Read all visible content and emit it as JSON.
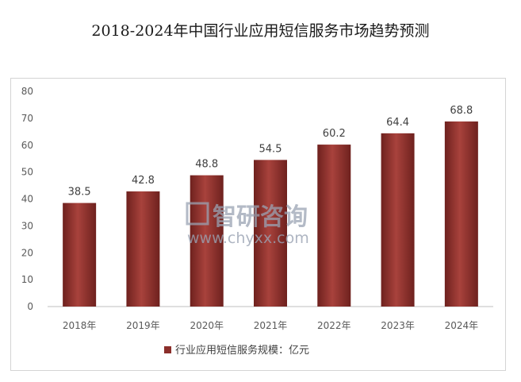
{
  "chart_data": {
    "type": "bar",
    "title": "2018-2024年中国行业应用短信服务市场趋势预测",
    "categories": [
      "2018年",
      "2019年",
      "2020年",
      "2021年",
      "2022年",
      "2023年",
      "2024年"
    ],
    "series": [
      {
        "name": "行业应用短信服务规模：亿元",
        "values": [
          38.5,
          42.8,
          48.8,
          54.5,
          60.2,
          64.4,
          68.8
        ]
      }
    ],
    "data_labels": [
      "38.5",
      "42.8",
      "48.8",
      "54.5",
      "60.2",
      "64.4",
      "68.8"
    ],
    "ylim": [
      0,
      80
    ],
    "yticks": [
      0,
      10,
      20,
      30,
      40,
      50,
      60,
      70,
      80
    ],
    "xlabel": "",
    "ylabel": "",
    "grid": false,
    "legend": "bottom",
    "bar_color": "#8b2e2a"
  },
  "watermark": {
    "brand": "智研咨询",
    "url": "www.chyxx.com"
  }
}
